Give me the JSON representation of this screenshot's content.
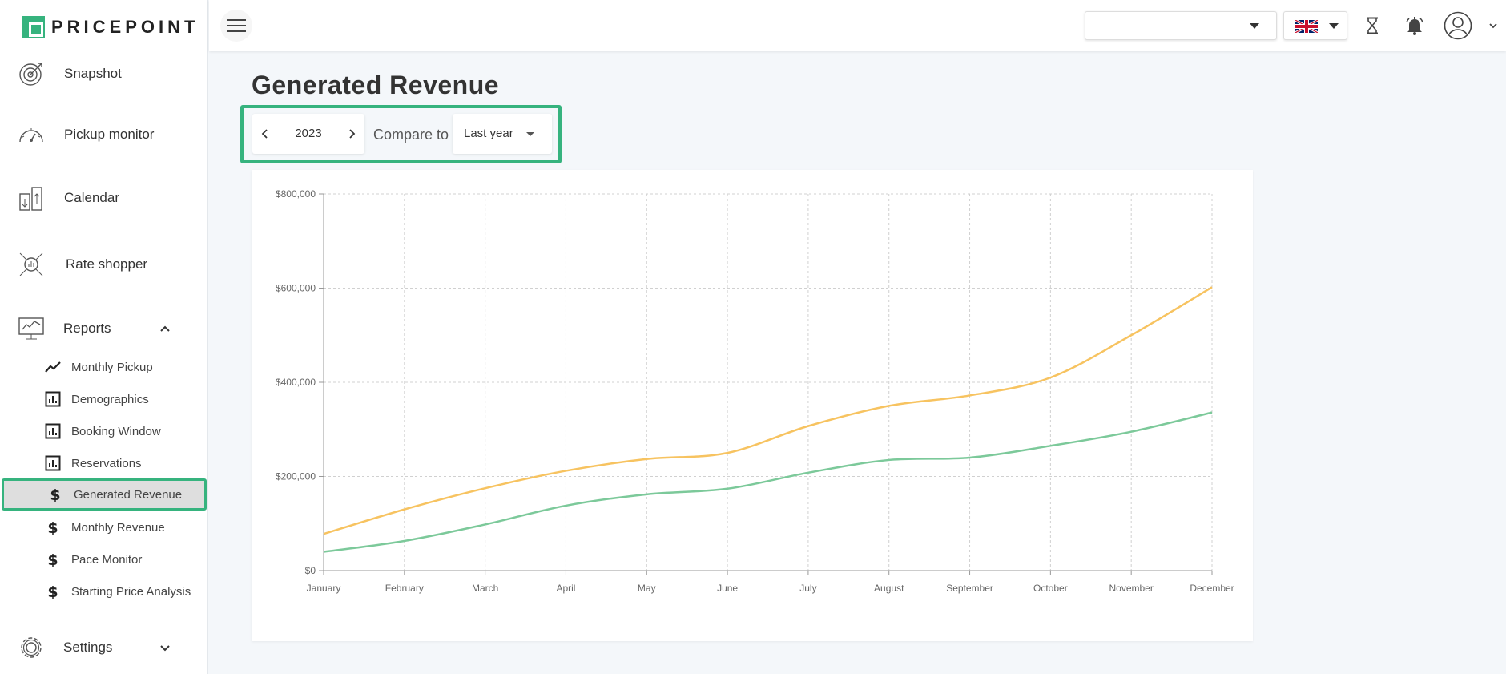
{
  "app": {
    "logo_text": "PRICEPOINT"
  },
  "sidebar": {
    "items": [
      {
        "label": "Snapshot",
        "icon": "target-icon"
      },
      {
        "label": "Pickup monitor",
        "icon": "gauge-icon"
      },
      {
        "label": "Calendar",
        "icon": "calendar-buildings-icon"
      },
      {
        "label": "Rate shopper",
        "icon": "rate-shopper-icon"
      },
      {
        "label": "Reports",
        "icon": "monitor-chart-icon",
        "expanded": true
      },
      {
        "label": "Settings",
        "icon": "gear-icon",
        "expanded": false
      }
    ],
    "reports": [
      {
        "label": "Monthly Pickup",
        "icon": "trend-line-icon"
      },
      {
        "label": "Demographics",
        "icon": "bar-chart-icon"
      },
      {
        "label": "Booking Window",
        "icon": "bar-chart-icon"
      },
      {
        "label": "Reservations",
        "icon": "bar-chart-icon"
      },
      {
        "label": "Generated Revenue",
        "icon": "dollar-icon",
        "active": true
      },
      {
        "label": "Monthly Revenue",
        "icon": "dollar-icon"
      },
      {
        "label": "Pace Monitor",
        "icon": "dollar-icon"
      },
      {
        "label": "Starting Price Analysis",
        "icon": "dollar-icon"
      }
    ]
  },
  "topbar": {
    "property_select_value": "",
    "language": "uk-flag-icon"
  },
  "main": {
    "title": "Generated Revenue",
    "year": "2023",
    "compare_label": "Compare to",
    "compare_value": "Last year"
  },
  "colors": {
    "accent": "#36b37e",
    "series_current": "#f7c360",
    "series_compare": "#7cc99a"
  },
  "chart_data": {
    "type": "line",
    "categories": [
      "January",
      "February",
      "March",
      "April",
      "May",
      "June",
      "July",
      "August",
      "September",
      "October",
      "November",
      "December"
    ],
    "y_ticks": [
      "$0",
      "$200,000",
      "$400,000",
      "$600,000",
      "$800,000"
    ],
    "ylim": [
      0,
      800000
    ],
    "grid": true,
    "series": [
      {
        "values": [
          78000,
          130000,
          175000,
          212000,
          237000,
          250000,
          307000,
          350000,
          372000,
          410000,
          500000,
          602000
        ],
        "color": "#f7c360"
      },
      {
        "values": [
          40000,
          63000,
          98000,
          138000,
          162000,
          174000,
          208000,
          235000,
          240000,
          265000,
          295000,
          336000
        ],
        "color": "#7cc99a"
      }
    ]
  }
}
